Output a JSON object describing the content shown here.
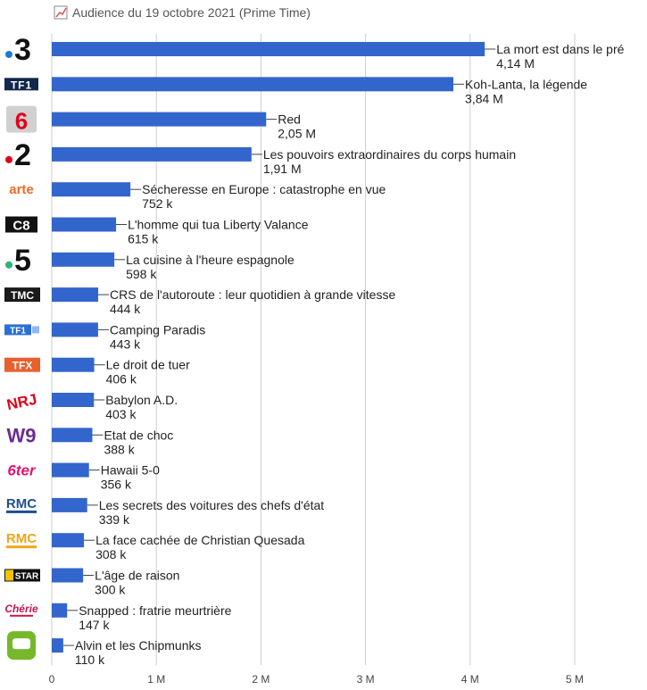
{
  "chart_data": {
    "type": "bar",
    "orientation": "horizontal",
    "title": "Audience du 19 octobre 2021 (Prime Time)",
    "title_icon": "line-chart-icon",
    "bar_color": "#3366cc",
    "grid": true,
    "xlim": [
      0,
      5600000
    ],
    "x_ticks": [
      {
        "value": 0,
        "label": "0"
      },
      {
        "value": 1000000,
        "label": "1 M"
      },
      {
        "value": 2000000,
        "label": "2 M"
      },
      {
        "value": 3000000,
        "label": "3 M"
      },
      {
        "value": 4000000,
        "label": "4 M"
      },
      {
        "value": 5000000,
        "label": "5 M"
      }
    ],
    "bars": [
      {
        "channel": "France 3",
        "logo": "france3",
        "program": "La mort est dans le pré",
        "value": 4140000,
        "value_label": "4,14 M"
      },
      {
        "channel": "TF1",
        "logo": "tf1",
        "program": "Koh-Lanta, la légende",
        "value": 3840000,
        "value_label": "3,84 M"
      },
      {
        "channel": "M6",
        "logo": "m6",
        "program": "Red",
        "value": 2050000,
        "value_label": "2,05 M"
      },
      {
        "channel": "France 2",
        "logo": "france2",
        "program": "Les pouvoirs extraordinaires du corps humain",
        "value": 1910000,
        "value_label": "1,91 M"
      },
      {
        "channel": "Arte",
        "logo": "arte",
        "program": "Sécheresse en Europe : catastrophe en vue",
        "value": 752000,
        "value_label": "752 k"
      },
      {
        "channel": "C8",
        "logo": "c8",
        "program": "L'homme qui tua Liberty Valance",
        "value": 615000,
        "value_label": "615 k"
      },
      {
        "channel": "France 5",
        "logo": "france5",
        "program": "La cuisine à l'heure espagnole",
        "value": 598000,
        "value_label": "598 k"
      },
      {
        "channel": "TMC",
        "logo": "tmc",
        "program": "CRS de l'autoroute : leur quotidien à grande vitesse",
        "value": 444000,
        "value_label": "444 k"
      },
      {
        "channel": "TF1 Séries Films",
        "logo": "tf1sf",
        "program": "Camping Paradis",
        "value": 443000,
        "value_label": "443 k"
      },
      {
        "channel": "TFX",
        "logo": "tfx",
        "program": "Le droit de tuer",
        "value": 406000,
        "value_label": "406 k"
      },
      {
        "channel": "NRJ 12",
        "logo": "nrj12",
        "program": "Babylon A.D.",
        "value": 403000,
        "value_label": "403 k"
      },
      {
        "channel": "W9",
        "logo": "w9",
        "program": "Etat de choc",
        "value": 388000,
        "value_label": "388 k"
      },
      {
        "channel": "6ter",
        "logo": "6ter",
        "program": "Hawaii 5-0",
        "value": 356000,
        "value_label": "356 k"
      },
      {
        "channel": "RMC Découverte",
        "logo": "rmcdec",
        "program": "Les secrets des voitures des chefs d'état",
        "value": 339000,
        "value_label": "339 k"
      },
      {
        "channel": "RMC Story",
        "logo": "rmcstory",
        "program": "La face cachée de Christian Quesada",
        "value": 308000,
        "value_label": "308 k"
      },
      {
        "channel": "CStar",
        "logo": "cstar",
        "program": "L'âge de raison",
        "value": 300000,
        "value_label": "300 k"
      },
      {
        "channel": "Chérie 25",
        "logo": "cherie25",
        "program": "Snapped : fratrie meurtrière",
        "value": 147000,
        "value_label": "147 k"
      },
      {
        "channel": "Gulli",
        "logo": "gulli",
        "program": "Alvin et les Chipmunks",
        "value": 110000,
        "value_label": "110 k"
      }
    ]
  }
}
